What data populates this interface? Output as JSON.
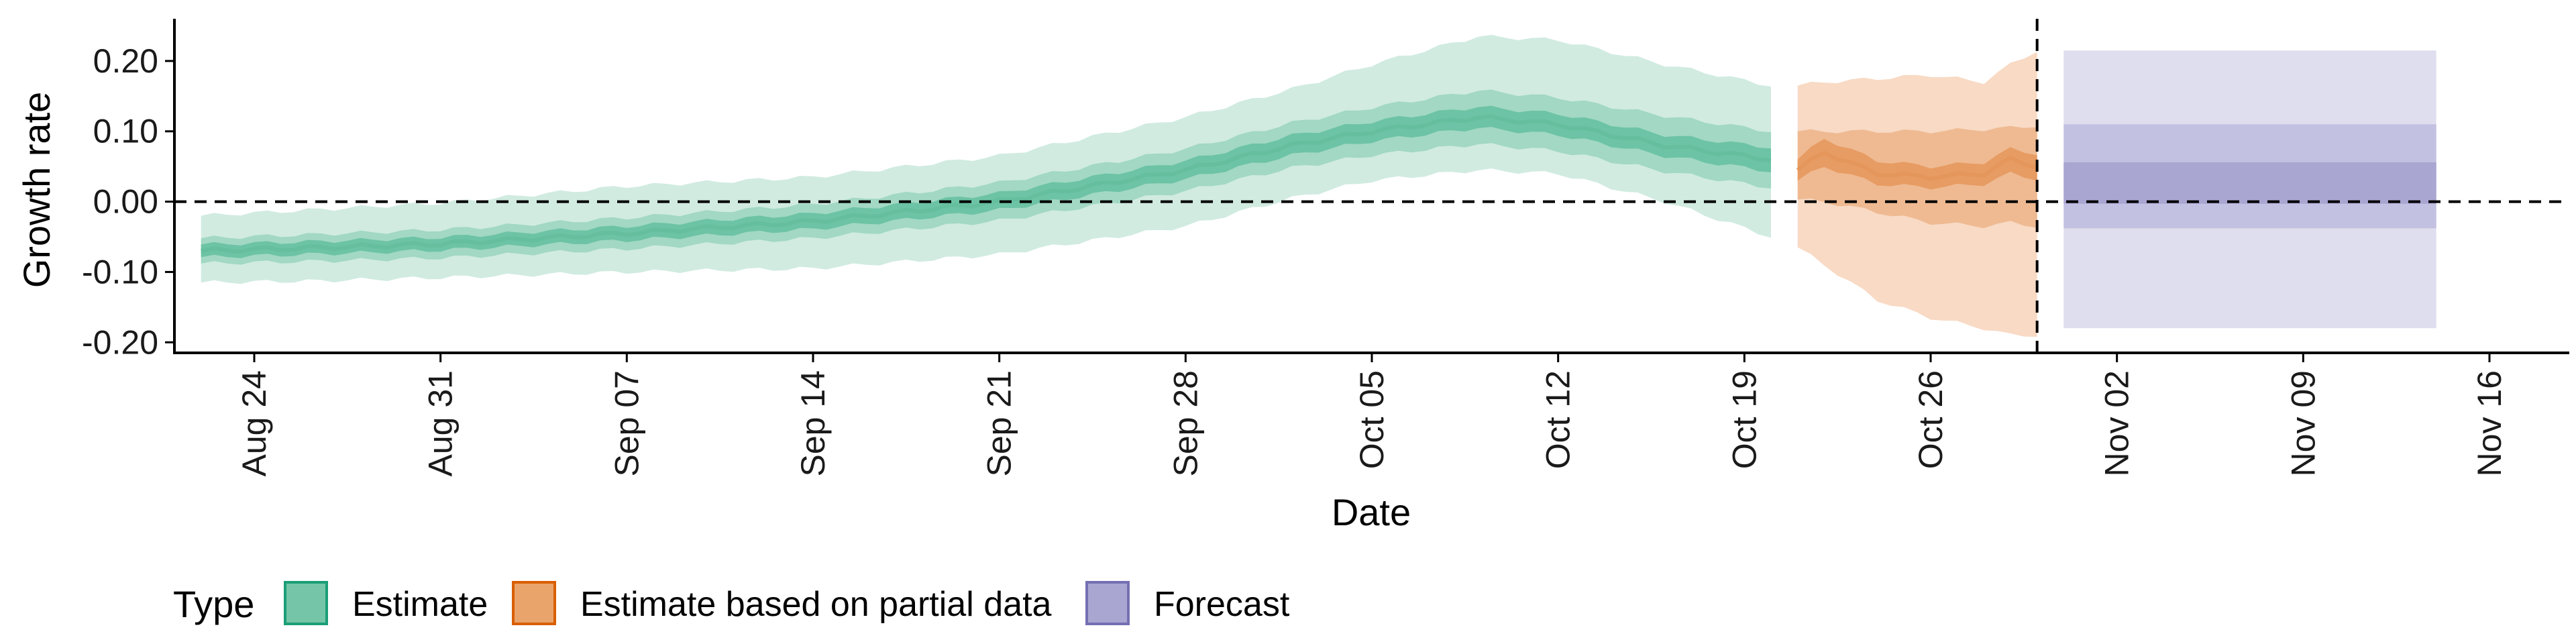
{
  "chart_data": {
    "type": "area",
    "xlabel": "Date",
    "ylabel": "Growth rate",
    "x_start": "2021-08-21",
    "x_end": "2021-11-19",
    "ylim": [
      -0.215,
      0.26
    ],
    "yticks": [
      {
        "value": -0.2,
        "label": "-0.20"
      },
      {
        "value": -0.1,
        "label": "-0.10"
      },
      {
        "value": 0.0,
        "label": "0.00"
      },
      {
        "value": 0.1,
        "label": "0.10"
      },
      {
        "value": 0.2,
        "label": "0.20"
      }
    ],
    "xticks": [
      {
        "date": "2021-08-24",
        "label": "Aug 24"
      },
      {
        "date": "2021-08-31",
        "label": "Aug 31"
      },
      {
        "date": "2021-09-07",
        "label": "Sep 07"
      },
      {
        "date": "2021-09-14",
        "label": "Sep 14"
      },
      {
        "date": "2021-09-21",
        "label": "Sep 21"
      },
      {
        "date": "2021-09-28",
        "label": "Sep 28"
      },
      {
        "date": "2021-10-05",
        "label": "Oct 05"
      },
      {
        "date": "2021-10-12",
        "label": "Oct 12"
      },
      {
        "date": "2021-10-19",
        "label": "Oct 19"
      },
      {
        "date": "2021-10-26",
        "label": "Oct 26"
      },
      {
        "date": "2021-11-02",
        "label": "Nov 02"
      },
      {
        "date": "2021-11-09",
        "label": "Nov 09"
      },
      {
        "date": "2021-11-16",
        "label": "Nov 16"
      }
    ],
    "reference_lines": {
      "hline_y": 0.0,
      "vline_date": "2021-10-30"
    },
    "legend": {
      "title": "Type",
      "position": "bottom-left",
      "items": [
        {
          "label": "Estimate",
          "fill": "#75c6a8",
          "border": "#1b9e77"
        },
        {
          "label": "Estimate based on partial data",
          "fill": "#e9a46c",
          "border": "#d95f02"
        },
        {
          "label": "Forecast",
          "fill": "#a9a6d2",
          "border": "#7570b3"
        }
      ]
    },
    "series": [
      {
        "name": "Estimate",
        "colors": {
          "outer": "#d1ebe1",
          "middle": "#a2d8c4",
          "inner": "#6dc3a5",
          "median": "#65bf9f"
        },
        "points": [
          {
            "date": "2021-08-22",
            "median": -0.07,
            "inner": [
              -0.079,
              -0.061
            ],
            "middle": [
              -0.088,
              -0.052
            ],
            "outer": [
              -0.115,
              -0.02
            ]
          },
          {
            "date": "2021-08-26",
            "median": -0.066,
            "inner": [
              -0.075,
              -0.057
            ],
            "middle": [
              -0.085,
              -0.047
            ],
            "outer": [
              -0.113,
              -0.012
            ]
          },
          {
            "date": "2021-08-31",
            "median": -0.06,
            "inner": [
              -0.069,
              -0.051
            ],
            "middle": [
              -0.08,
              -0.04
            ],
            "outer": [
              -0.108,
              -0.002
            ]
          },
          {
            "date": "2021-09-07",
            "median": -0.045,
            "inner": [
              -0.055,
              -0.035
            ],
            "middle": [
              -0.067,
              -0.023
            ],
            "outer": [
              -0.1,
              0.022
            ]
          },
          {
            "date": "2021-09-14",
            "median": -0.028,
            "inner": [
              -0.039,
              -0.017
            ],
            "middle": [
              -0.052,
              -0.004
            ],
            "outer": [
              -0.095,
              0.035
            ]
          },
          {
            "date": "2021-09-21",
            "median": 0.0,
            "inner": [
              -0.012,
              0.012
            ],
            "middle": [
              -0.027,
              0.027
            ],
            "outer": [
              -0.075,
              0.065
            ]
          },
          {
            "date": "2021-09-28",
            "median": 0.045,
            "inner": [
              0.032,
              0.058
            ],
            "middle": [
              0.015,
              0.075
            ],
            "outer": [
              -0.035,
              0.12
            ]
          },
          {
            "date": "2021-10-02",
            "median": 0.08,
            "inner": [
              0.066,
              0.094
            ],
            "middle": [
              0.048,
              0.112
            ],
            "outer": [
              0.005,
              0.16
            ]
          },
          {
            "date": "2021-10-05",
            "median": 0.1,
            "inner": [
              0.086,
              0.114
            ],
            "middle": [
              0.066,
              0.134
            ],
            "outer": [
              0.03,
              0.195
            ]
          },
          {
            "date": "2021-10-09",
            "median": 0.12,
            "inner": [
              0.105,
              0.135
            ],
            "middle": [
              0.082,
              0.158
            ],
            "outer": [
              0.045,
              0.235
            ]
          },
          {
            "date": "2021-10-12",
            "median": 0.11,
            "inner": [
              0.095,
              0.125
            ],
            "middle": [
              0.072,
              0.148
            ],
            "outer": [
              0.04,
              0.23
            ]
          },
          {
            "date": "2021-10-16",
            "median": 0.08,
            "inner": [
              0.065,
              0.095
            ],
            "middle": [
              0.043,
              0.122
            ],
            "outer": [
              0.0,
              0.195
            ]
          },
          {
            "date": "2021-10-20",
            "median": 0.06,
            "inner": [
              0.043,
              0.077
            ],
            "middle": [
              0.02,
              0.1
            ],
            "outer": [
              -0.05,
              0.165
            ]
          }
        ]
      },
      {
        "name": "Estimate based on partial data",
        "colors": {
          "outer": "#f8dac5",
          "middle": "#efba92",
          "inner": "#e79c63",
          "median": "#e4965b"
        },
        "points": [
          {
            "date": "2021-10-21",
            "median": 0.045,
            "inner": [
              0.03,
              0.06
            ],
            "middle": [
              0.003,
              0.1
            ],
            "outer": [
              -0.065,
              0.165
            ]
          },
          {
            "date": "2021-10-22",
            "median": 0.07,
            "inner": [
              0.05,
              0.09
            ],
            "middle": [
              0.0,
              0.1
            ],
            "outer": [
              -0.09,
              0.17
            ]
          },
          {
            "date": "2021-10-24",
            "median": 0.04,
            "inner": [
              0.025,
              0.058
            ],
            "middle": [
              -0.015,
              0.1
            ],
            "outer": [
              -0.14,
              0.175
            ]
          },
          {
            "date": "2021-10-26",
            "median": 0.035,
            "inner": [
              0.02,
              0.05
            ],
            "middle": [
              -0.03,
              0.1
            ],
            "outer": [
              -0.165,
              0.18
            ]
          },
          {
            "date": "2021-10-28",
            "median": 0.04,
            "inner": [
              0.025,
              0.056
            ],
            "middle": [
              -0.035,
              0.103
            ],
            "outer": [
              -0.18,
              0.17
            ]
          },
          {
            "date": "2021-10-29",
            "median": 0.06,
            "inner": [
              0.04,
              0.075
            ],
            "middle": [
              -0.03,
              0.105
            ],
            "outer": [
              -0.19,
              0.195
            ]
          },
          {
            "date": "2021-10-30",
            "median": 0.05,
            "inner": [
              0.032,
              0.068
            ],
            "middle": [
              -0.035,
              0.108
            ],
            "outer": [
              -0.19,
              0.215
            ]
          }
        ]
      },
      {
        "name": "Forecast",
        "colors": {
          "outer": "#dfdeee",
          "middle": "#c3c1e1",
          "inner": "#a9a6d2",
          "median": "#a9a6d2"
        },
        "points": [
          {
            "date": "2021-10-31",
            "median": 0.01,
            "inner": [
              -0.003,
              0.056
            ],
            "middle": [
              -0.038,
              0.11
            ],
            "outer": [
              -0.18,
              0.215
            ]
          },
          {
            "date": "2021-11-14",
            "median": 0.01,
            "inner": [
              -0.003,
              0.056
            ],
            "middle": [
              -0.038,
              0.11
            ],
            "outer": [
              -0.18,
              0.215
            ]
          }
        ]
      }
    ]
  }
}
